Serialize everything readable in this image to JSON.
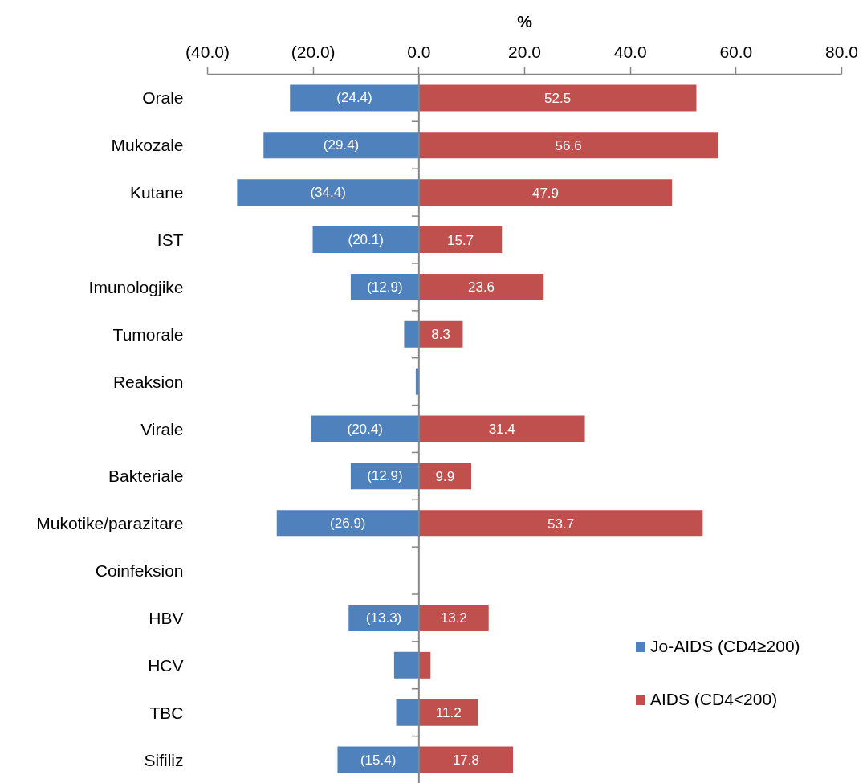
{
  "chart_data": {
    "type": "bar",
    "orientation": "horizontal",
    "stacked": true,
    "xlabel": "%",
    "categories": [
      "Orale",
      "Mukozale",
      "Kutane",
      "IST",
      "Imunologjike",
      "Tumorale",
      "Reaksion",
      "Virale",
      "Bakteriale",
      "Mukotike/parazitare",
      "Coinfeksion",
      "HBV",
      "HCV",
      "TBC",
      "Sifiliz"
    ],
    "series": [
      {
        "name": "Jo-AIDS (CD4≥200)",
        "color": "#4f81bd",
        "values": [
          -24.4,
          -29.4,
          -34.4,
          -20.1,
          -12.9,
          -2.8,
          -0.6,
          -20.4,
          -12.9,
          -26.9,
          null,
          -13.3,
          -4.7,
          -4.3,
          -15.4
        ],
        "value_labels": [
          "(24.4)",
          "(29.4)",
          "(34.4)",
          "(20.1)",
          "(12.9)",
          null,
          null,
          "(20.4)",
          "(12.9)",
          "(26.9)",
          null,
          "(13.3)",
          null,
          null,
          "(15.4)"
        ]
      },
      {
        "name": "AIDS (CD4<200)",
        "color": "#c0504d",
        "values": [
          52.5,
          56.6,
          47.9,
          15.7,
          23.6,
          8.3,
          null,
          31.4,
          9.9,
          53.7,
          null,
          13.2,
          2.2,
          11.2,
          17.8
        ],
        "value_labels": [
          "52.5",
          "56.6",
          "47.9",
          "15.7",
          "23.6",
          "8.3",
          null,
          "31.4",
          "9.9",
          "53.7",
          null,
          "13.2",
          null,
          "11.2",
          "17.8"
        ]
      }
    ],
    "xlim": [
      -40,
      80
    ],
    "xticks": [
      {
        "value": -40,
        "label": "(40.0)"
      },
      {
        "value": -20,
        "label": "(20.0)"
      },
      {
        "value": 0,
        "label": "0.0"
      },
      {
        "value": 20,
        "label": "20.0"
      },
      {
        "value": 40,
        "label": "40.0"
      },
      {
        "value": 60,
        "label": "60.0"
      },
      {
        "value": 80,
        "label": "80.0"
      }
    ],
    "legend": "bottom right"
  }
}
